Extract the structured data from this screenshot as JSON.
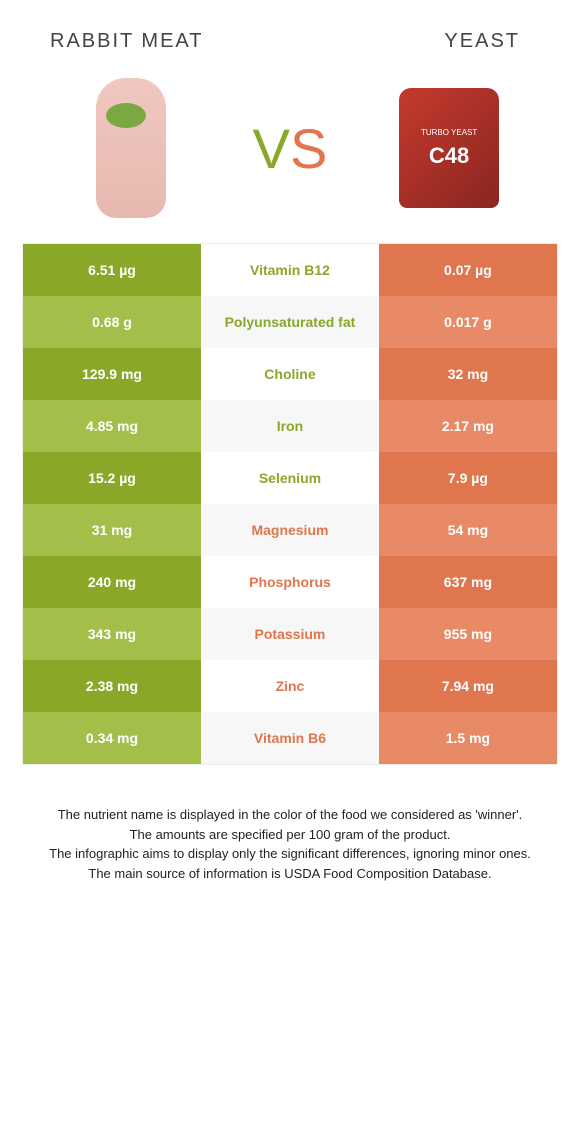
{
  "header": {
    "left_title": "Rabbit meat",
    "right_title": "Yeast"
  },
  "vs": {
    "v": "V",
    "s": "S"
  },
  "yeast_label": {
    "line1": "TURBO YEAST",
    "c48": "C48"
  },
  "colors": {
    "green_dark": "#8aa827",
    "green_light": "#a3bf4a",
    "orange_dark": "#e0764d",
    "orange_light": "#e88a65",
    "mid_green_text": "#8aa827",
    "mid_orange_text": "#e0764d"
  },
  "rows": [
    {
      "left": "6.51 µg",
      "mid": "Vitamin B12",
      "right": "0.07 µg",
      "winner": "left"
    },
    {
      "left": "0.68 g",
      "mid": "Polyunsaturated fat",
      "right": "0.017 g",
      "winner": "left"
    },
    {
      "left": "129.9 mg",
      "mid": "Choline",
      "right": "32 mg",
      "winner": "left"
    },
    {
      "left": "4.85 mg",
      "mid": "Iron",
      "right": "2.17 mg",
      "winner": "left"
    },
    {
      "left": "15.2 µg",
      "mid": "Selenium",
      "right": "7.9 µg",
      "winner": "left"
    },
    {
      "left": "31 mg",
      "mid": "Magnesium",
      "right": "54 mg",
      "winner": "right"
    },
    {
      "left": "240 mg",
      "mid": "Phosphorus",
      "right": "637 mg",
      "winner": "right"
    },
    {
      "left": "343 mg",
      "mid": "Potassium",
      "right": "955 mg",
      "winner": "right"
    },
    {
      "left": "2.38 mg",
      "mid": "Zinc",
      "right": "7.94 mg",
      "winner": "right"
    },
    {
      "left": "0.34 mg",
      "mid": "Vitamin B6",
      "right": "1.5 mg",
      "winner": "right"
    }
  ],
  "footer": {
    "line1": "The nutrient name is displayed in the color of the food we considered as 'winner'.",
    "line2": "The amounts are specified per 100 gram of the product.",
    "line3": "The infographic aims to display only the significant differences, ignoring minor ones.",
    "line4": "The main source of information is USDA Food Composition Database."
  }
}
